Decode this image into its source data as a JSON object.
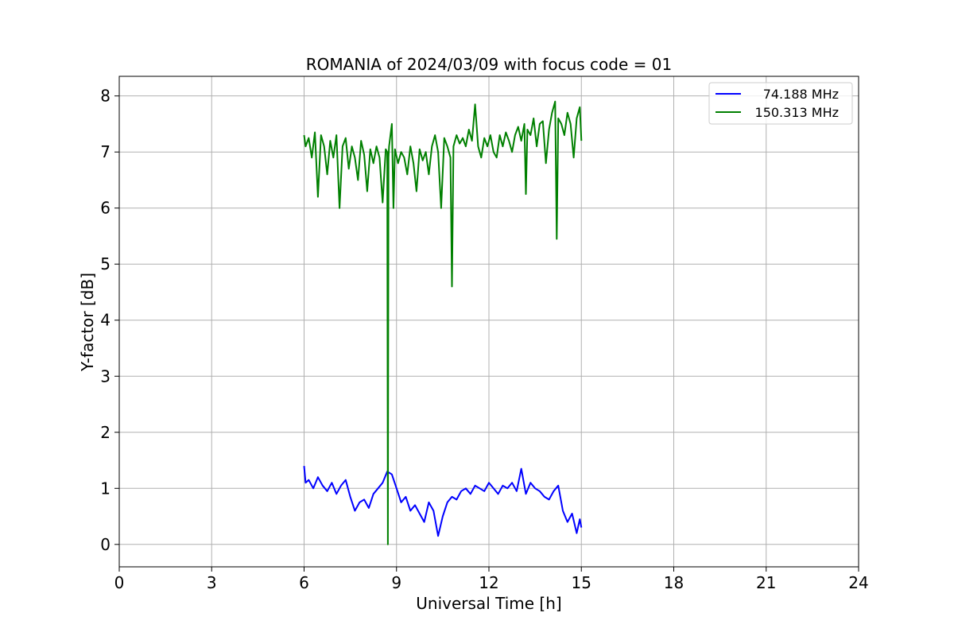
{
  "chart_data": {
    "type": "line",
    "title": "ROMANIA of 2024/03/09 with focus code = 01",
    "xlabel": "Universal Time [h]",
    "ylabel": "Y-factor [dB]",
    "xlim": [
      0,
      24
    ],
    "ylim": [
      -0.4,
      8.35
    ],
    "xticks": [
      0,
      3,
      6,
      9,
      12,
      15,
      18,
      21,
      24
    ],
    "yticks": [
      0,
      1,
      2,
      3,
      4,
      5,
      6,
      7,
      8
    ],
    "grid": true,
    "legend_position": "top-right",
    "series": [
      {
        "name": "74.188 MHz",
        "color": "#0000ff",
        "x": [
          6.0,
          6.05,
          6.15,
          6.3,
          6.45,
          6.6,
          6.75,
          6.9,
          7.05,
          7.2,
          7.35,
          7.5,
          7.65,
          7.8,
          7.95,
          8.1,
          8.25,
          8.4,
          8.55,
          8.7,
          8.85,
          9.0,
          9.15,
          9.3,
          9.45,
          9.6,
          9.75,
          9.9,
          10.05,
          10.2,
          10.35,
          10.5,
          10.65,
          10.8,
          10.95,
          11.1,
          11.25,
          11.4,
          11.55,
          11.7,
          11.85,
          12.0,
          12.15,
          12.3,
          12.45,
          12.6,
          12.75,
          12.9,
          13.05,
          13.2,
          13.35,
          13.5,
          13.65,
          13.8,
          13.95,
          14.1,
          14.25,
          14.4,
          14.55,
          14.7,
          14.85,
          14.95,
          15.0
        ],
        "y": [
          1.4,
          1.1,
          1.15,
          1.0,
          1.2,
          1.05,
          0.95,
          1.1,
          0.9,
          1.05,
          1.15,
          0.85,
          0.6,
          0.75,
          0.8,
          0.65,
          0.9,
          1.0,
          1.1,
          1.3,
          1.25,
          1.0,
          0.75,
          0.85,
          0.6,
          0.7,
          0.55,
          0.4,
          0.75,
          0.6,
          0.15,
          0.5,
          0.75,
          0.85,
          0.8,
          0.95,
          1.0,
          0.9,
          1.05,
          1.0,
          0.95,
          1.1,
          1.0,
          0.9,
          1.05,
          1.0,
          1.1,
          0.95,
          1.35,
          0.9,
          1.1,
          1.0,
          0.95,
          0.85,
          0.8,
          0.95,
          1.05,
          0.6,
          0.4,
          0.55,
          0.2,
          0.45,
          0.3
        ]
      },
      {
        "name": "150.313 MHz",
        "color": "#008000",
        "x": [
          6.0,
          6.05,
          6.15,
          6.25,
          6.35,
          6.45,
          6.55,
          6.65,
          6.75,
          6.85,
          6.95,
          7.05,
          7.15,
          7.25,
          7.35,
          7.45,
          7.55,
          7.65,
          7.75,
          7.85,
          7.95,
          8.05,
          8.15,
          8.25,
          8.35,
          8.45,
          8.55,
          8.65,
          8.7,
          8.72,
          8.74,
          8.76,
          8.85,
          8.9,
          8.95,
          9.05,
          9.15,
          9.25,
          9.35,
          9.45,
          9.55,
          9.65,
          9.75,
          9.85,
          9.95,
          10.05,
          10.15,
          10.25,
          10.35,
          10.45,
          10.55,
          10.65,
          10.75,
          10.8,
          10.85,
          10.95,
          11.05,
          11.15,
          11.25,
          11.35,
          11.45,
          11.55,
          11.65,
          11.75,
          11.85,
          11.95,
          12.05,
          12.15,
          12.25,
          12.35,
          12.45,
          12.55,
          12.65,
          12.75,
          12.85,
          12.95,
          13.05,
          13.15,
          13.2,
          13.25,
          13.35,
          13.45,
          13.55,
          13.65,
          13.75,
          13.85,
          13.95,
          14.05,
          14.15,
          14.2,
          14.25,
          14.35,
          14.45,
          14.55,
          14.65,
          14.75,
          14.85,
          14.95,
          15.0
        ],
        "y": [
          7.3,
          7.1,
          7.25,
          6.9,
          7.35,
          6.2,
          7.3,
          7.1,
          6.6,
          7.2,
          6.9,
          7.3,
          6.0,
          7.1,
          7.25,
          6.7,
          7.1,
          6.9,
          6.5,
          7.2,
          6.95,
          6.3,
          7.05,
          6.8,
          7.1,
          6.9,
          6.1,
          7.05,
          7.0,
          0.0,
          6.9,
          7.1,
          7.5,
          6.0,
          7.05,
          6.8,
          7.0,
          6.9,
          6.6,
          7.1,
          6.8,
          6.3,
          7.05,
          6.85,
          7.0,
          6.6,
          7.1,
          7.3,
          7.0,
          6.0,
          7.25,
          7.1,
          6.9,
          4.6,
          7.1,
          7.3,
          7.15,
          7.25,
          7.1,
          7.4,
          7.2,
          7.85,
          7.1,
          6.9,
          7.25,
          7.1,
          7.3,
          7.0,
          6.9,
          7.3,
          7.1,
          7.35,
          7.2,
          7.0,
          7.3,
          7.45,
          7.2,
          7.5,
          6.25,
          7.4,
          7.3,
          7.6,
          7.1,
          7.5,
          7.55,
          6.8,
          7.4,
          7.7,
          7.9,
          5.45,
          7.6,
          7.5,
          7.3,
          7.7,
          7.5,
          6.9,
          7.6,
          7.8,
          7.2
        ]
      }
    ]
  }
}
